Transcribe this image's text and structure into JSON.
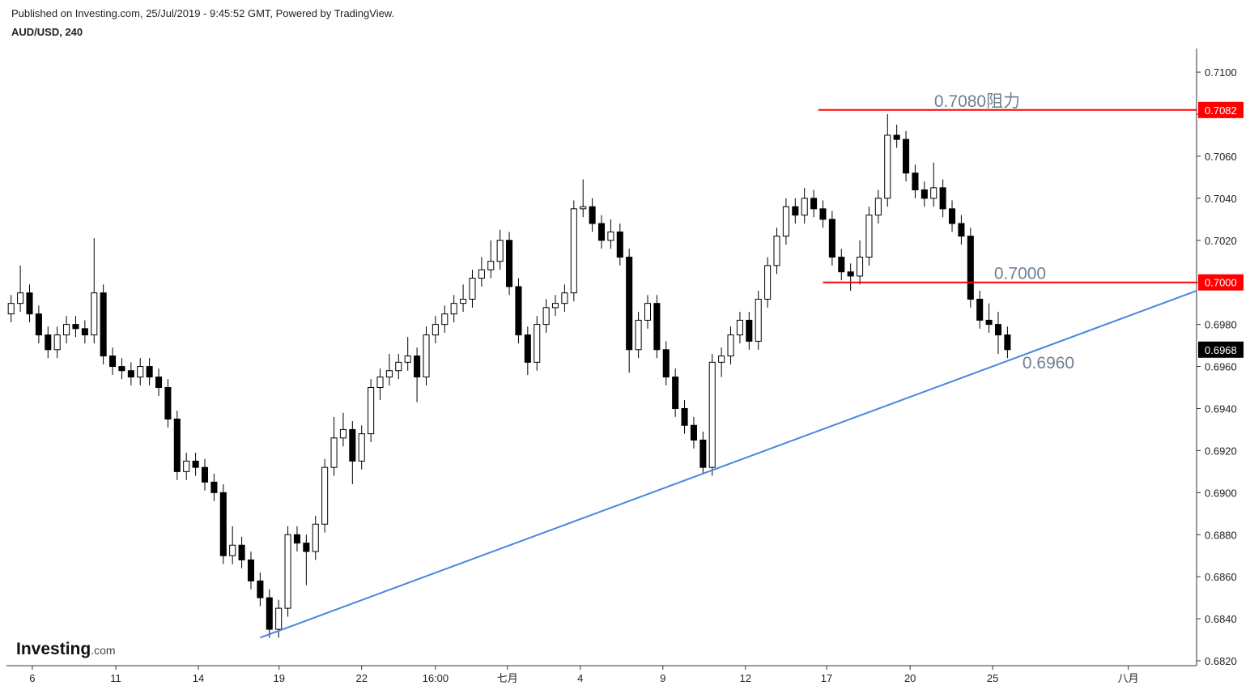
{
  "header": {
    "published": "Published on Investing.com, 25/Jul/2019 - 9:45:52 GMT, Powered by TradingView.",
    "symbol": "AUD/USD, 240"
  },
  "logo": {
    "main": "Investing",
    "suffix": ".com"
  },
  "chart_data": {
    "type": "candlestick",
    "xlim": [
      -1,
      257
    ],
    "ylim": [
      0.68177,
      0.71112
    ],
    "yticks": [
      {
        "value": 0.682,
        "label": "0.6820"
      },
      {
        "value": 0.684,
        "label": "0.6840"
      },
      {
        "value": 0.686,
        "label": "0.6860"
      },
      {
        "value": 0.688,
        "label": "0.6880"
      },
      {
        "value": 0.69,
        "label": "0.6900"
      },
      {
        "value": 0.692,
        "label": "0.6920"
      },
      {
        "value": 0.694,
        "label": "0.6940"
      },
      {
        "value": 0.696,
        "label": "0.6960"
      },
      {
        "value": 0.698,
        "label": "0.6980"
      },
      {
        "value": 0.7,
        "label": "0.7000"
      },
      {
        "value": 0.702,
        "label": "0.7020"
      },
      {
        "value": 0.704,
        "label": "0.7040"
      },
      {
        "value": 0.706,
        "label": "0.7060"
      },
      {
        "value": 0.708,
        "label": "0.7080"
      },
      {
        "value": 0.71,
        "label": "0.7100"
      }
    ],
    "xticks": [
      {
        "value": 4.6,
        "label": "6"
      },
      {
        "value": 22.7,
        "label": "11"
      },
      {
        "value": 40.6,
        "label": "14"
      },
      {
        "value": 58.1,
        "label": "19"
      },
      {
        "value": 76.0,
        "label": "22"
      },
      {
        "value": 92.0,
        "label": "16:00"
      },
      {
        "value": 107.6,
        "label": "七月"
      },
      {
        "value": 123.4,
        "label": "4"
      },
      {
        "value": 141.3,
        "label": "9"
      },
      {
        "value": 159.2,
        "label": "12"
      },
      {
        "value": 176.8,
        "label": "17"
      },
      {
        "value": 194.9,
        "label": "20"
      },
      {
        "value": 212.8,
        "label": "25"
      },
      {
        "value": 242.2,
        "label": "八月"
      }
    ],
    "up_color": "#ffffff",
    "down_color": "#000000",
    "x": [
      0,
      2,
      4,
      6,
      8,
      10,
      12,
      14,
      16,
      18,
      20,
      22,
      24,
      26,
      28,
      30,
      32,
      34,
      36,
      38,
      40,
      42,
      44,
      46,
      48,
      50,
      52,
      54,
      56,
      58,
      60,
      62,
      64,
      66,
      68,
      70,
      72,
      74,
      76,
      78,
      80,
      82,
      84,
      86,
      88,
      90,
      92,
      94,
      96,
      98,
      100,
      102,
      104,
      106,
      108,
      110,
      112,
      114,
      116,
      118,
      120,
      122,
      124,
      126,
      128,
      130,
      132,
      134,
      136,
      138,
      140,
      142,
      144,
      146,
      148,
      150,
      152,
      154,
      156,
      158,
      160,
      162,
      164,
      166,
      168,
      170,
      172,
      174,
      176,
      178,
      180,
      182,
      184,
      186,
      188,
      190,
      192,
      194,
      196,
      198,
      200,
      202,
      204,
      206,
      208,
      210,
      212,
      214,
      216
    ],
    "open": [
      0.6985,
      0.699,
      0.6995,
      0.6985,
      0.6975,
      0.6968,
      0.6975,
      0.698,
      0.6978,
      0.6975,
      0.6995,
      0.6965,
      0.696,
      0.6958,
      0.6955,
      0.696,
      0.6955,
      0.695,
      0.6935,
      0.691,
      0.6915,
      0.6912,
      0.6905,
      0.69,
      0.687,
      0.6875,
      0.6868,
      0.6858,
      0.685,
      0.6835,
      0.6845,
      0.688,
      0.6876,
      0.6872,
      0.6885,
      0.6912,
      0.6926,
      0.693,
      0.6915,
      0.6928,
      0.695,
      0.6955,
      0.6958,
      0.6962,
      0.6965,
      0.6955,
      0.6975,
      0.698,
      0.6985,
      0.699,
      0.6992,
      0.7002,
      0.7006,
      0.701,
      0.702,
      0.6998,
      0.6975,
      0.6962,
      0.698,
      0.6988,
      0.699,
      0.6995,
      0.7035,
      0.7036,
      0.7028,
      0.702,
      0.7024,
      0.7012,
      0.6968,
      0.6982,
      0.699,
      0.6968,
      0.6955,
      0.694,
      0.6932,
      0.6925,
      0.6912,
      0.6962,
      0.6965,
      0.6975,
      0.6982,
      0.6972,
      0.6992,
      0.7008,
      0.7022,
      0.7036,
      0.7032,
      0.704,
      0.7035,
      0.703,
      0.7012,
      0.7005,
      0.7003,
      0.7012,
      0.7032,
      0.704,
      0.707,
      0.7068,
      0.7052,
      0.7044,
      0.704,
      0.7045,
      0.7035,
      0.7028,
      0.7022,
      0.6992,
      0.6982,
      0.698,
      0.6975
    ],
    "high": [
      0.6994,
      0.7008,
      0.6999,
      0.6989,
      0.6979,
      0.6979,
      0.6984,
      0.6984,
      0.6982,
      0.7021,
      0.6999,
      0.6969,
      0.6964,
      0.6962,
      0.6964,
      0.6964,
      0.6959,
      0.6954,
      0.6939,
      0.6919,
      0.6919,
      0.6916,
      0.6909,
      0.6904,
      0.6884,
      0.6879,
      0.6872,
      0.6862,
      0.6854,
      0.6849,
      0.6884,
      0.6884,
      0.688,
      0.6889,
      0.6916,
      0.6936,
      0.6938,
      0.6934,
      0.6932,
      0.6954,
      0.6959,
      0.6966,
      0.6966,
      0.6974,
      0.6969,
      0.6979,
      0.6984,
      0.6989,
      0.6994,
      0.6999,
      0.7006,
      0.7012,
      0.702,
      0.7025,
      0.7024,
      0.7002,
      0.6979,
      0.6984,
      0.6992,
      0.6994,
      0.6999,
      0.7039,
      0.7049,
      0.704,
      0.7032,
      0.703,
      0.7028,
      0.7016,
      0.6986,
      0.6994,
      0.6994,
      0.6972,
      0.6959,
      0.6944,
      0.6936,
      0.6929,
      0.6966,
      0.6969,
      0.6979,
      0.6986,
      0.6986,
      0.6996,
      0.7012,
      0.7026,
      0.704,
      0.704,
      0.7045,
      0.7044,
      0.7039,
      0.7034,
      0.7016,
      0.7009,
      0.702,
      0.7036,
      0.7044,
      0.708,
      0.7075,
      0.7072,
      0.7056,
      0.7048,
      0.7057,
      0.7049,
      0.7039,
      0.7032,
      0.7026,
      0.6996,
      0.699,
      0.6986,
      0.6979
    ],
    "low": [
      0.6981,
      0.6986,
      0.6981,
      0.6971,
      0.6964,
      0.6964,
      0.6971,
      0.6974,
      0.6971,
      0.6971,
      0.6961,
      0.6956,
      0.6954,
      0.6951,
      0.6951,
      0.6951,
      0.6946,
      0.6931,
      0.6906,
      0.6906,
      0.6908,
      0.6901,
      0.6896,
      0.6866,
      0.6866,
      0.6864,
      0.6854,
      0.6846,
      0.6831,
      0.6831,
      0.6841,
      0.6872,
      0.6856,
      0.6868,
      0.6881,
      0.6908,
      0.6922,
      0.6904,
      0.6911,
      0.6924,
      0.6944,
      0.6951,
      0.6954,
      0.6958,
      0.6943,
      0.6951,
      0.6971,
      0.6976,
      0.6981,
      0.6986,
      0.6988,
      0.6998,
      0.7002,
      0.7006,
      0.6994,
      0.6971,
      0.6956,
      0.6958,
      0.6976,
      0.6984,
      0.6986,
      0.6991,
      0.7031,
      0.7024,
      0.7016,
      0.7016,
      0.7008,
      0.6957,
      0.6964,
      0.6978,
      0.6964,
      0.6951,
      0.6936,
      0.6928,
      0.6921,
      0.6909,
      0.6908,
      0.6955,
      0.6961,
      0.6971,
      0.6968,
      0.6968,
      0.6988,
      0.7004,
      0.7018,
      0.7028,
      0.7028,
      0.7031,
      0.7026,
      0.7008,
      0.7001,
      0.6996,
      0.6999,
      0.7008,
      0.7028,
      0.7036,
      0.7064,
      0.7048,
      0.704,
      0.7036,
      0.7036,
      0.7031,
      0.7024,
      0.7018,
      0.6988,
      0.6978,
      0.6976,
      0.6966,
      0.6964
    ],
    "close": [
      0.699,
      0.6995,
      0.6985,
      0.6975,
      0.6968,
      0.6975,
      0.698,
      0.6978,
      0.6975,
      0.6995,
      0.6965,
      0.696,
      0.6958,
      0.6955,
      0.696,
      0.6955,
      0.695,
      0.6935,
      0.691,
      0.6915,
      0.6912,
      0.6905,
      0.69,
      0.687,
      0.6875,
      0.6868,
      0.6858,
      0.685,
      0.6835,
      0.6845,
      0.688,
      0.6876,
      0.6872,
      0.6885,
      0.6912,
      0.6926,
      0.693,
      0.6915,
      0.6928,
      0.695,
      0.6955,
      0.6958,
      0.6962,
      0.6965,
      0.6955,
      0.6975,
      0.698,
      0.6985,
      0.699,
      0.6992,
      0.7002,
      0.7006,
      0.701,
      0.702,
      0.6998,
      0.6975,
      0.6962,
      0.698,
      0.6988,
      0.699,
      0.6995,
      0.7035,
      0.7036,
      0.7028,
      0.702,
      0.7024,
      0.7012,
      0.6968,
      0.6982,
      0.699,
      0.6968,
      0.6955,
      0.694,
      0.6932,
      0.6925,
      0.6912,
      0.6962,
      0.6965,
      0.6975,
      0.6982,
      0.6972,
      0.6992,
      0.7008,
      0.7022,
      0.7036,
      0.7032,
      0.704,
      0.7035,
      0.703,
      0.7012,
      0.7005,
      0.7003,
      0.7012,
      0.7032,
      0.704,
      0.707,
      0.7068,
      0.7052,
      0.7044,
      0.704,
      0.7045,
      0.7035,
      0.7028,
      0.7022,
      0.6992,
      0.6982,
      0.698,
      0.6975,
      0.6968
    ],
    "hlines": [
      {
        "value": 0.7082,
        "start": 175,
        "color": "#ff0000",
        "label": "0.7082",
        "note": "0.7080阻力"
      },
      {
        "value": 0.7,
        "start": 176,
        "color": "#ff0000",
        "label": "0.7000",
        "note": "0.7000"
      }
    ],
    "trendline": {
      "x": [
        54,
        257
      ],
      "y": [
        0.6831,
        0.6996
      ],
      "color": "#4a86e0",
      "note": "0.6960"
    },
    "last_price": {
      "value": 0.6968,
      "label": "0.6968"
    }
  }
}
